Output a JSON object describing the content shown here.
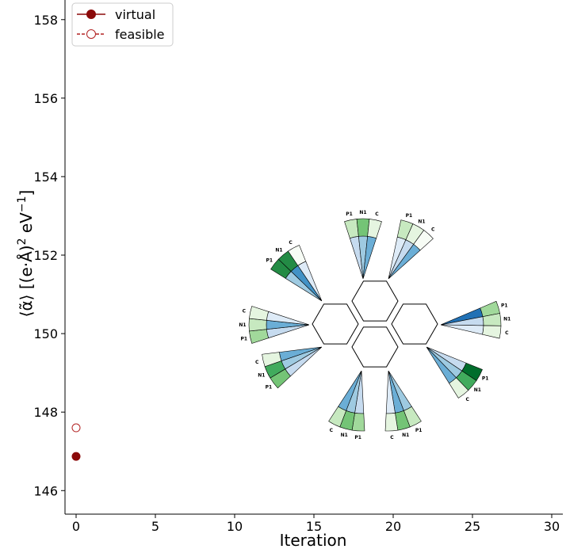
{
  "chart_data": {
    "type": "scatter",
    "xlabel": "Iteration",
    "ylabel_parts": [
      "⟨",
      "α̃",
      "⟩",
      "[(e·Å)",
      "2",
      " eV",
      "−1",
      "]"
    ],
    "xlim": [
      -0.7,
      30.7
    ],
    "ylim": [
      145.4,
      158.5
    ],
    "xticks": [
      "0",
      "5",
      "10",
      "15",
      "20",
      "25",
      "30"
    ],
    "yticks": [
      "146",
      "148",
      "150",
      "152",
      "154",
      "156",
      "158"
    ],
    "xtick_values": [
      0,
      5,
      10,
      15,
      20,
      25,
      30
    ],
    "ytick_values": [
      146,
      148,
      150,
      152,
      154,
      156,
      158
    ],
    "legend_position": "top-left",
    "series": [
      {
        "name": "virtual",
        "marker": "filled-circle",
        "line": "solid",
        "color": "#8b0a0a",
        "points": [
          [
            0,
            146.87
          ]
        ]
      },
      {
        "name": "feasible",
        "marker": "open-circle",
        "line": "dashed",
        "color": "#b22222",
        "points": [
          [
            0,
            147.6
          ]
        ]
      }
    ],
    "inset": {
      "description_labels": [
        "P1",
        "N1",
        "C"
      ],
      "blue_colors": [
        "#deebf7",
        "#c6dbef",
        "#9ecae1",
        "#6baed6",
        "#4292c6",
        "#2171b5"
      ],
      "green_colors": [
        "#f7fcf5",
        "#e5f5e0",
        "#c7e9c0",
        "#a1d99b",
        "#74c476",
        "#41ab5d",
        "#238b45",
        "#006d2c"
      ]
    }
  }
}
